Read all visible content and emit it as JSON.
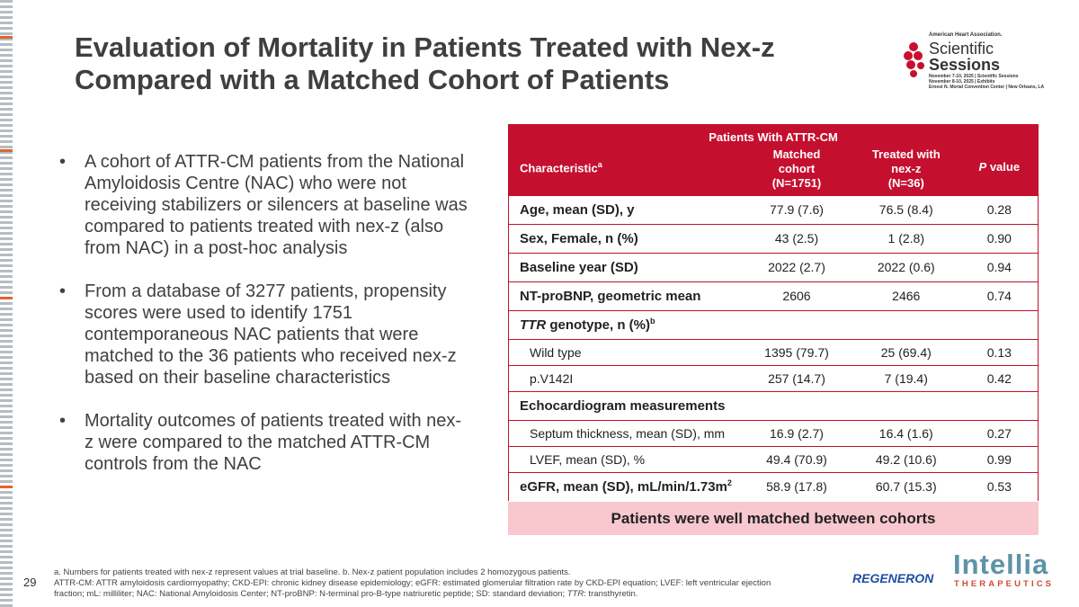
{
  "slide_number": "29",
  "title": [
    "Evaluation of Mortality in Patients Treated with Nex-z",
    "Compared with a Matched Cohort of Patients"
  ],
  "bullets": [
    "A cohort of ATTR-CM patients from the National Amyloidosis Centre (NAC) who were not receiving stabilizers or silencers at baseline was compared to patients treated with nex-z (also from NAC) in a post-hoc analysis",
    "From a database of 3277 patients, propensity scores were used to identify 1751 contemporaneous NAC patients that were matched to the 36 patients who received nex-z based on their baseline characteristics",
    "Mortality outcomes of patients treated with nex-z were compared to the matched ATTR-CM controls from the NAC"
  ],
  "table": {
    "group_header": "Patients With ATTR-CM",
    "header": {
      "characteristic": {
        "text": "Characteristic",
        "sup": "a"
      },
      "matched": [
        "Matched",
        "cohort",
        "(N=1751)"
      ],
      "treated": [
        "Treated with",
        "nex-z",
        "(N=36)"
      ],
      "p_value": {
        "italic": "P",
        "text": " value"
      }
    },
    "rows": [
      {
        "label": {
          "text": "Age, mean (SD), y"
        },
        "values": [
          "77.9 (7.6)",
          "76.5 (8.4)",
          "0.28"
        ]
      },
      {
        "label": {
          "text": "Sex, Female, n (%)"
        },
        "values": [
          "43 (2.5)",
          "1 (2.8)",
          "0.90"
        ]
      },
      {
        "label": {
          "text": "Baseline year (SD)"
        },
        "values": [
          "2022 (2.7)",
          "2022 (0.6)",
          "0.94"
        ]
      },
      {
        "label": {
          "text": "NT-proBNP, geometric mean"
        },
        "values": [
          "2606",
          "2466",
          "0.74"
        ]
      },
      {
        "label": {
          "italic": "TTR",
          "text": " genotype, n (%)",
          "sup": "b"
        },
        "sub_rows": [
          {
            "label": "Wild type",
            "values": [
              "1395 (79.7)",
              "25 (69.4)",
              "0.13"
            ]
          },
          {
            "label": "p.V142I",
            "values": [
              "257 (14.7)",
              "7 (19.4)",
              "0.42"
            ]
          }
        ]
      },
      {
        "label": {
          "text": "Echocardiogram measurements"
        },
        "sub_rows": [
          {
            "label": "Septum thickness, mean (SD), mm",
            "values": [
              "16.9 (2.7)",
              "16.4 (1.6)",
              "0.27"
            ]
          },
          {
            "label": "LVEF, mean (SD), %",
            "values": [
              "49.4 (70.9)",
              "49.2 (10.6)",
              "0.99"
            ]
          }
        ]
      },
      {
        "label": {
          "text": "eGFR, mean (SD), mL/min/1.73m",
          "sup": "2"
        },
        "values": [
          "58.9 (17.8)",
          "60.7 (15.3)",
          "0.53"
        ]
      }
    ],
    "conclusion": "Patients were well matched between cohorts"
  },
  "footnotes": {
    "notes": "a. Numbers for patients treated with nex-z represent values at trial baseline. b. Nex-z patient population includes 2 homozygous patients.",
    "abbreviations": [
      "ATTR-CM: ATTR amyloidosis cardiomyopathy; CKD-EPI: chronic kidney disease epidemiology; eGFR: estimated glomerular filtration rate by CKD-EPI equation; LVEF: left ventricular ejection fraction; mL: milliliter; NAC: National Amyloidosis Center; NT-proBNP: N-terminal pro-B-type natriuretic peptide; SD: standard deviation; ",
      "TTR",
      ": transthyretin."
    ]
  },
  "logos": {
    "aha": "American Heart Association.",
    "scientific": "Scientific",
    "sessions": "Sessions",
    "dates": [
      "November 7-10, 2025 | Scientific Sessions",
      "November 8-10, 2025 | Exhibits",
      "Ernest N. Morial Convention Center | New Orleans, LA"
    ],
    "regeneron": "REGENERON",
    "intellia": "Intellia",
    "therapeutics": "THERAPEUTICS"
  }
}
